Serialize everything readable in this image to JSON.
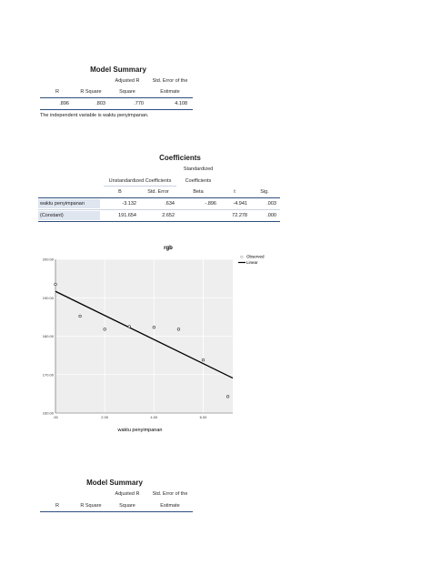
{
  "model_summary_1": {
    "title": "Model Summary",
    "headers": [
      "R",
      "R Square",
      "Adjusted R Square",
      "Std. Error of the Estimate"
    ],
    "headers_top": [
      "",
      "",
      "Adjusted R",
      "Std. Error of the"
    ],
    "headers_bottom": [
      "R",
      "R Square",
      "Square",
      "Estimate"
    ],
    "row": [
      ".896",
      ".803",
      ".770",
      "4.108"
    ],
    "note": "The independent variable is waktu penyimpanan."
  },
  "coefficients": {
    "title": "Coefficients",
    "group_unstd": "Unstandardized Coefficients",
    "group_std_top": "Standardized",
    "group_std_bottom": "Coefficients",
    "col_b": "B",
    "col_se": "Std. Error",
    "col_beta": "Beta",
    "col_t": "t",
    "col_sig": "Sig.",
    "rows": [
      {
        "label": "waktu penyimpanan",
        "b": "-3.132",
        "se": ".634",
        "beta": "-.896",
        "t": "-4.941",
        "sig": ".003"
      },
      {
        "label": "(Constant)",
        "b": "191.654",
        "se": "2.652",
        "beta": "",
        "t": "72.278",
        "sig": ".000"
      }
    ]
  },
  "chart_data": {
    "type": "scatter",
    "title": "rgb",
    "xlabel": "waktu penyimpanan",
    "ylabel": "",
    "xlim": [
      0,
      7.2
    ],
    "ylim": [
      160,
      200
    ],
    "x_ticks": [
      ".00",
      "2.00",
      "4.00",
      "6.00"
    ],
    "x_tick_values": [
      0,
      2,
      4,
      6
    ],
    "y_ticks": [
      "160.00",
      "170.00",
      "180.00",
      "190.00",
      "200.00"
    ],
    "y_tick_values": [
      160,
      170,
      180,
      190,
      200
    ],
    "grid": true,
    "legend_position": "top-right",
    "series": [
      {
        "name": "Observed",
        "x": [
          0,
          1,
          2,
          3,
          4,
          5,
          6,
          7
        ],
        "y": [
          193.5,
          185.2,
          181.8,
          182.5,
          182.3,
          181.8,
          173.8,
          164.3
        ]
      },
      {
        "name": "Linear",
        "x": [
          0,
          7.2
        ],
        "y": [
          191.654,
          169.104
        ]
      }
    ],
    "colors": {
      "observed": "#333333",
      "linear": "#000000",
      "plot_bg": "#eeeeee",
      "grid": "#ffffff"
    }
  },
  "model_summary_2": {
    "title": "Model Summary",
    "headers_top": [
      "",
      "",
      "Adjusted R",
      "Std. Error of the"
    ],
    "headers_bottom": [
      "R",
      "R Square",
      "Square",
      "Estimate"
    ]
  }
}
